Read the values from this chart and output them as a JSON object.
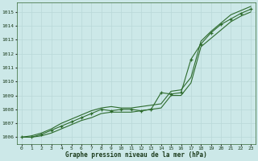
{
  "bg_color": "#cce8e8",
  "plot_bg_color": "#cce8e8",
  "grid_color": "#aacccc",
  "line_color": "#2d6b2d",
  "marker_color": "#2d6b2d",
  "xlabel": "Graphe pression niveau de la mer (hPa)",
  "ylim": [
    1005.5,
    1015.7
  ],
  "xlim": [
    -0.5,
    23.5
  ],
  "yticks": [
    1006,
    1007,
    1008,
    1009,
    1010,
    1011,
    1012,
    1013,
    1014,
    1015
  ],
  "xticks": [
    0,
    1,
    2,
    3,
    4,
    5,
    6,
    7,
    8,
    9,
    10,
    11,
    12,
    13,
    14,
    15,
    16,
    17,
    18,
    19,
    20,
    21,
    22,
    23
  ],
  "series_upper": [
    1006.0,
    1006.1,
    1006.3,
    1006.6,
    1007.0,
    1007.3,
    1007.6,
    1007.9,
    1008.1,
    1008.2,
    1008.1,
    1008.1,
    1008.2,
    1008.3,
    1008.4,
    1009.3,
    1009.4,
    1010.3,
    1012.9,
    1013.6,
    1014.2,
    1014.8,
    1015.1,
    1015.4
  ],
  "series_lower": [
    1006.0,
    1006.0,
    1006.1,
    1006.3,
    1006.6,
    1006.9,
    1007.2,
    1007.4,
    1007.7,
    1007.8,
    1007.8,
    1007.8,
    1007.9,
    1008.0,
    1008.1,
    1009.0,
    1009.0,
    1009.9,
    1012.5,
    1013.1,
    1013.7,
    1014.3,
    1014.7,
    1015.0
  ],
  "series_actual": [
    1006.0,
    1006.0,
    1006.2,
    1006.5,
    1006.8,
    1007.1,
    1007.4,
    1007.7,
    1008.0,
    1007.9,
    1008.0,
    1008.0,
    1007.9,
    1008.0,
    1009.2,
    1009.1,
    1009.2,
    1011.6,
    1012.7,
    1013.5,
    1014.1,
    1014.5,
    1014.9,
    1015.2
  ]
}
